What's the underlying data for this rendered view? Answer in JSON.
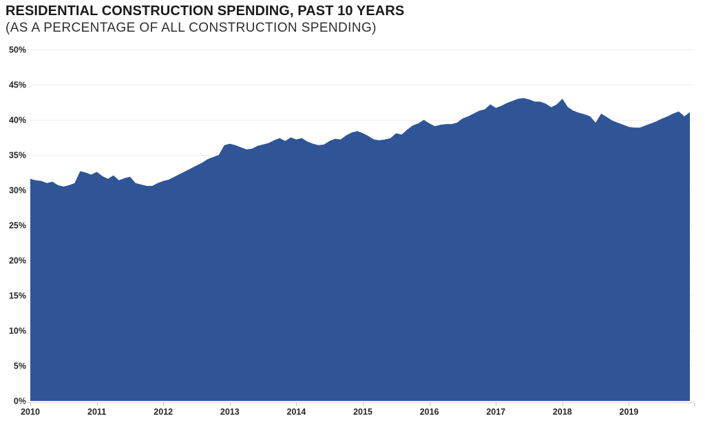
{
  "header": {
    "title": "RESIDENTIAL CONSTRUCTION SPENDING, PAST 10 YEARS",
    "subtitle": "(AS A PERCENTAGE OF ALL CONSTRUCTION SPENDING)"
  },
  "chart_data": {
    "type": "area",
    "title": "RESIDENTIAL CONSTRUCTION SPENDING, PAST 10 YEARS",
    "subtitle": "(AS A PERCENTAGE OF ALL CONSTRUCTION SPENDING)",
    "x_unit": "month",
    "x_start": "2010-01",
    "x_years": [
      "2010",
      "2011",
      "2012",
      "2013",
      "2014",
      "2015",
      "2016",
      "2017",
      "2018",
      "2019"
    ],
    "ylim": [
      0,
      50
    ],
    "ytick_step": 5,
    "ytick_labels": [
      "0%",
      "5%",
      "10%",
      "15%",
      "20%",
      "25%",
      "30%",
      "35%",
      "40%",
      "45%",
      "50%"
    ],
    "grid": true,
    "legend": "none",
    "fill_color": "#2F5597",
    "gridline_color": "#ECECEC",
    "axis_line_color": "#D9D9D9",
    "tick_color": "#BFBFBF",
    "label_color": "#262626",
    "series": [
      {
        "name": "RESIDENTIAL CONSTRUCTION SPENDING (% OF ALL CONSTRUCTION SPENDING)",
        "values": [
          31.6,
          31.4,
          31.3,
          31.0,
          31.2,
          30.7,
          30.5,
          30.7,
          31.0,
          32.7,
          32.5,
          32.2,
          32.6,
          32.0,
          31.6,
          32.1,
          31.4,
          31.7,
          31.9,
          31.0,
          30.8,
          30.6,
          30.6,
          31.0,
          31.3,
          31.5,
          31.9,
          32.3,
          32.7,
          33.1,
          33.5,
          33.9,
          34.4,
          34.7,
          35.0,
          36.4,
          36.6,
          36.4,
          36.1,
          35.8,
          35.9,
          36.3,
          36.5,
          36.7,
          37.1,
          37.4,
          37.0,
          37.5,
          37.2,
          37.4,
          36.9,
          36.6,
          36.4,
          36.5,
          37.0,
          37.3,
          37.2,
          37.8,
          38.2,
          38.4,
          38.1,
          37.7,
          37.2,
          37.1,
          37.2,
          37.4,
          38.1,
          37.9,
          38.6,
          39.2,
          39.5,
          40.0,
          39.5,
          39.1,
          39.3,
          39.4,
          39.4,
          39.6,
          40.2,
          40.5,
          40.9,
          41.3,
          41.5,
          42.2,
          41.7,
          42.0,
          42.4,
          42.7,
          43.0,
          43.1,
          42.9,
          42.6,
          42.6,
          42.3,
          41.8,
          42.2,
          43.0,
          41.8,
          41.3,
          41.0,
          40.8,
          40.5,
          39.6,
          40.9,
          40.4,
          39.9,
          39.6,
          39.3,
          39.0,
          38.9,
          38.9,
          39.2,
          39.5,
          39.8,
          40.2,
          40.5,
          40.9,
          41.2,
          40.5,
          41.1
        ]
      }
    ]
  }
}
